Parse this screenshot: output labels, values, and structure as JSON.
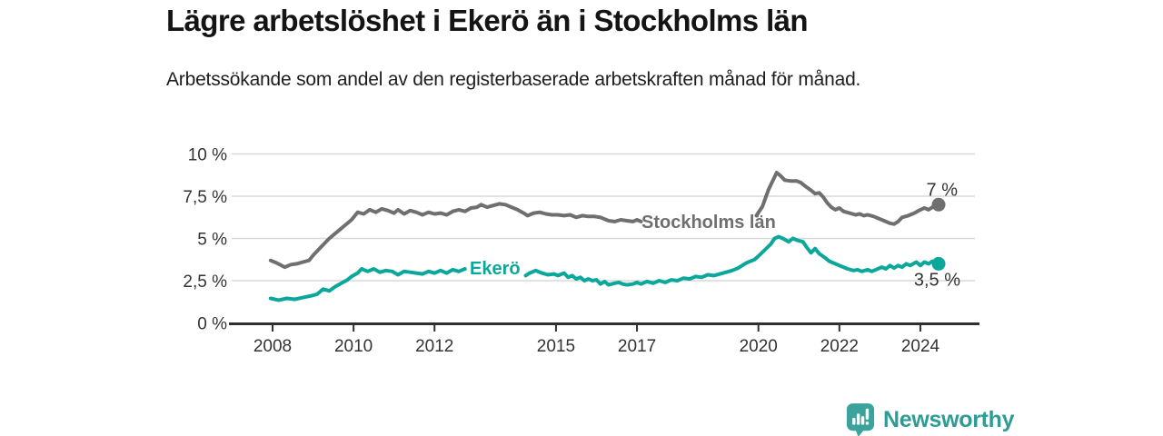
{
  "title": "Lägre arbetslöshet i Ekerö än i Stockholms län",
  "subtitle": "Arbetssökande som andel av den registerbaserade arbetskraften månad för månad.",
  "logo": {
    "text": "Newsworthy",
    "icon": "bar-chart-speech-bubble-icon"
  },
  "colors": {
    "stockholm_line": "#6f6f6f",
    "ekero_line": "#0ca79b",
    "grid": "#d9d9d9",
    "axis": "#2f2f2f",
    "tick_text": "#333333",
    "annotation_text": "#333333",
    "logo_teal": "#3ba39b",
    "logo_text_teal": "#2e9c94"
  },
  "chart_data": {
    "type": "line",
    "title": "Lägre arbetslöshet i Ekerö än i Stockholms län",
    "xlabel": "",
    "ylabel": "",
    "grid": "horizontal",
    "xlim": [
      2007.6,
      2025.4
    ],
    "ylim": [
      0,
      10
    ],
    "x_ticks": {
      "values": [
        2008,
        2010,
        2012,
        2015,
        2017,
        2020,
        2022,
        2024
      ],
      "labels": [
        "2008",
        "2010",
        "2012",
        "2015",
        "2017",
        "2020",
        "2022",
        "2024"
      ]
    },
    "y_ticks": {
      "values": [
        0,
        2.5,
        5,
        7.5,
        10
      ],
      "labels": [
        "0 %",
        "2,5 %",
        "5 %",
        "7,5 %",
        "10 %"
      ]
    },
    "series": [
      {
        "name": "Stockholms län",
        "inline_label": "Stockholms län",
        "end_label": "7 %",
        "end_value": 7.0,
        "color": "#6f6f6f",
        "segments": [
          [
            [
              2007.95,
              3.7
            ],
            [
              2008.1,
              3.55
            ],
            [
              2008.3,
              3.3
            ],
            [
              2008.45,
              3.45
            ],
            [
              2008.6,
              3.5
            ],
            [
              2008.75,
              3.6
            ],
            [
              2008.9,
              3.7
            ],
            [
              2009.0,
              4.0
            ],
            [
              2009.2,
              4.5
            ],
            [
              2009.4,
              5.0
            ],
            [
              2009.6,
              5.4
            ],
            [
              2009.8,
              5.8
            ],
            [
              2009.95,
              6.1
            ],
            [
              2010.1,
              6.55
            ],
            [
              2010.25,
              6.45
            ],
            [
              2010.4,
              6.7
            ],
            [
              2010.55,
              6.55
            ],
            [
              2010.7,
              6.75
            ],
            [
              2010.85,
              6.65
            ],
            [
              2011.0,
              6.5
            ],
            [
              2011.1,
              6.7
            ],
            [
              2011.25,
              6.45
            ],
            [
              2011.4,
              6.65
            ],
            [
              2011.55,
              6.55
            ],
            [
              2011.7,
              6.4
            ],
            [
              2011.85,
              6.55
            ],
            [
              2012.0,
              6.45
            ],
            [
              2012.15,
              6.5
            ],
            [
              2012.3,
              6.4
            ],
            [
              2012.45,
              6.6
            ],
            [
              2012.6,
              6.7
            ],
            [
              2012.75,
              6.6
            ],
            [
              2012.9,
              6.8
            ],
            [
              2013.05,
              6.85
            ],
            [
              2013.15,
              7.0
            ],
            [
              2013.3,
              6.85
            ],
            [
              2013.45,
              6.95
            ],
            [
              2013.6,
              7.05
            ],
            [
              2013.75,
              7.0
            ],
            [
              2013.9,
              6.85
            ],
            [
              2014.05,
              6.7
            ],
            [
              2014.2,
              6.5
            ],
            [
              2014.3,
              6.35
            ],
            [
              2014.45,
              6.5
            ],
            [
              2014.6,
              6.55
            ],
            [
              2014.75,
              6.45
            ],
            [
              2014.9,
              6.4
            ],
            [
              2015.05,
              6.4
            ],
            [
              2015.2,
              6.35
            ],
            [
              2015.35,
              6.4
            ],
            [
              2015.5,
              6.25
            ],
            [
              2015.65,
              6.35
            ],
            [
              2015.8,
              6.3
            ],
            [
              2015.95,
              6.3
            ],
            [
              2016.1,
              6.25
            ],
            [
              2016.3,
              6.05
            ],
            [
              2016.45,
              6.0
            ],
            [
              2016.6,
              6.1
            ],
            [
              2016.75,
              6.05
            ],
            [
              2016.9,
              6.0
            ],
            [
              2017.0,
              6.1
            ],
            [
              2017.1,
              6.0
            ]
          ],
          [
            [
              2019.95,
              6.35
            ],
            [
              2020.1,
              6.9
            ],
            [
              2020.25,
              7.9
            ],
            [
              2020.45,
              8.9
            ],
            [
              2020.55,
              8.7
            ],
            [
              2020.65,
              8.45
            ],
            [
              2020.8,
              8.4
            ],
            [
              2020.95,
              8.4
            ],
            [
              2021.05,
              8.3
            ],
            [
              2021.15,
              8.1
            ],
            [
              2021.3,
              7.85
            ],
            [
              2021.4,
              7.65
            ],
            [
              2021.5,
              7.7
            ],
            [
              2021.6,
              7.45
            ],
            [
              2021.7,
              7.1
            ],
            [
              2021.8,
              6.85
            ],
            [
              2021.9,
              6.7
            ],
            [
              2022.0,
              6.8
            ],
            [
              2022.1,
              6.6
            ],
            [
              2022.25,
              6.5
            ],
            [
              2022.4,
              6.4
            ],
            [
              2022.5,
              6.45
            ],
            [
              2022.6,
              6.35
            ],
            [
              2022.7,
              6.4
            ],
            [
              2022.85,
              6.3
            ],
            [
              2023.0,
              6.15
            ],
            [
              2023.1,
              6.05
            ],
            [
              2023.25,
              5.9
            ],
            [
              2023.35,
              5.85
            ],
            [
              2023.45,
              6.0
            ],
            [
              2023.55,
              6.25
            ],
            [
              2023.7,
              6.35
            ],
            [
              2023.85,
              6.5
            ],
            [
              2024.0,
              6.7
            ],
            [
              2024.1,
              6.8
            ],
            [
              2024.2,
              6.7
            ],
            [
              2024.3,
              6.85
            ],
            [
              2024.45,
              7.0
            ]
          ]
        ]
      },
      {
        "name": "Ekerö",
        "inline_label": "Ekerö",
        "end_label": "3,5 %",
        "end_value": 3.5,
        "color": "#0ca79b",
        "segments": [
          [
            [
              2007.95,
              1.45
            ],
            [
              2008.15,
              1.35
            ],
            [
              2008.35,
              1.45
            ],
            [
              2008.55,
              1.4
            ],
            [
              2008.75,
              1.5
            ],
            [
              2008.95,
              1.6
            ],
            [
              2009.1,
              1.7
            ],
            [
              2009.25,
              2.0
            ],
            [
              2009.4,
              1.9
            ],
            [
              2009.55,
              2.15
            ],
            [
              2009.7,
              2.35
            ],
            [
              2009.85,
              2.55
            ],
            [
              2009.95,
              2.75
            ],
            [
              2010.1,
              2.95
            ],
            [
              2010.2,
              3.2
            ],
            [
              2010.35,
              3.05
            ],
            [
              2010.5,
              3.2
            ],
            [
              2010.65,
              3.0
            ],
            [
              2010.8,
              3.1
            ],
            [
              2010.95,
              3.05
            ],
            [
              2011.1,
              2.85
            ],
            [
              2011.25,
              3.05
            ],
            [
              2011.4,
              3.0
            ],
            [
              2011.55,
              2.95
            ],
            [
              2011.7,
              2.9
            ],
            [
              2011.85,
              3.05
            ],
            [
              2012.0,
              2.95
            ],
            [
              2012.15,
              3.1
            ],
            [
              2012.3,
              2.95
            ],
            [
              2012.45,
              3.15
            ],
            [
              2012.6,
              3.05
            ],
            [
              2012.75,
              3.2
            ]
          ],
          [
            [
              2014.25,
              2.8
            ],
            [
              2014.35,
              2.95
            ],
            [
              2014.5,
              3.1
            ],
            [
              2014.65,
              2.95
            ],
            [
              2014.8,
              2.85
            ],
            [
              2014.95,
              2.9
            ],
            [
              2015.05,
              2.8
            ],
            [
              2015.2,
              2.95
            ],
            [
              2015.3,
              2.7
            ],
            [
              2015.4,
              2.8
            ],
            [
              2015.5,
              2.6
            ],
            [
              2015.6,
              2.7
            ],
            [
              2015.7,
              2.5
            ],
            [
              2015.8,
              2.6
            ],
            [
              2015.9,
              2.5
            ],
            [
              2016.0,
              2.55
            ],
            [
              2016.1,
              2.3
            ],
            [
              2016.2,
              2.45
            ],
            [
              2016.3,
              2.25
            ],
            [
              2016.45,
              2.35
            ],
            [
              2016.55,
              2.4
            ],
            [
              2016.65,
              2.3
            ],
            [
              2016.75,
              2.25
            ],
            [
              2016.9,
              2.3
            ],
            [
              2017.0,
              2.4
            ],
            [
              2017.1,
              2.3
            ],
            [
              2017.25,
              2.45
            ],
            [
              2017.4,
              2.35
            ],
            [
              2017.55,
              2.5
            ],
            [
              2017.7,
              2.4
            ],
            [
              2017.85,
              2.55
            ],
            [
              2018.0,
              2.5
            ],
            [
              2018.15,
              2.65
            ],
            [
              2018.3,
              2.6
            ],
            [
              2018.45,
              2.75
            ],
            [
              2018.6,
              2.7
            ],
            [
              2018.75,
              2.85
            ],
            [
              2018.9,
              2.8
            ],
            [
              2019.05,
              2.9
            ],
            [
              2019.2,
              3.0
            ],
            [
              2019.35,
              3.1
            ],
            [
              2019.5,
              3.25
            ],
            [
              2019.7,
              3.55
            ],
            [
              2019.9,
              3.75
            ],
            [
              2020.0,
              3.95
            ],
            [
              2020.15,
              4.3
            ],
            [
              2020.3,
              4.65
            ],
            [
              2020.4,
              5.0
            ],
            [
              2020.5,
              5.1
            ],
            [
              2020.6,
              5.0
            ],
            [
              2020.75,
              4.8
            ],
            [
              2020.85,
              5.0
            ],
            [
              2020.95,
              4.9
            ],
            [
              2021.1,
              4.8
            ],
            [
              2021.2,
              4.45
            ],
            [
              2021.3,
              4.15
            ],
            [
              2021.4,
              4.4
            ],
            [
              2021.5,
              4.1
            ],
            [
              2021.65,
              3.85
            ],
            [
              2021.75,
              3.65
            ],
            [
              2021.9,
              3.5
            ],
            [
              2022.0,
              3.4
            ],
            [
              2022.1,
              3.3
            ],
            [
              2022.2,
              3.2
            ],
            [
              2022.35,
              3.1
            ],
            [
              2022.45,
              3.15
            ],
            [
              2022.55,
              3.05
            ],
            [
              2022.7,
              3.15
            ],
            [
              2022.8,
              3.05
            ],
            [
              2022.95,
              3.2
            ],
            [
              2023.05,
              3.3
            ],
            [
              2023.15,
              3.2
            ],
            [
              2023.25,
              3.4
            ],
            [
              2023.35,
              3.25
            ],
            [
              2023.45,
              3.4
            ],
            [
              2023.55,
              3.3
            ],
            [
              2023.65,
              3.5
            ],
            [
              2023.75,
              3.4
            ],
            [
              2023.9,
              3.6
            ],
            [
              2024.0,
              3.4
            ],
            [
              2024.1,
              3.6
            ],
            [
              2024.2,
              3.5
            ],
            [
              2024.3,
              3.65
            ],
            [
              2024.45,
              3.5
            ]
          ]
        ]
      }
    ]
  }
}
